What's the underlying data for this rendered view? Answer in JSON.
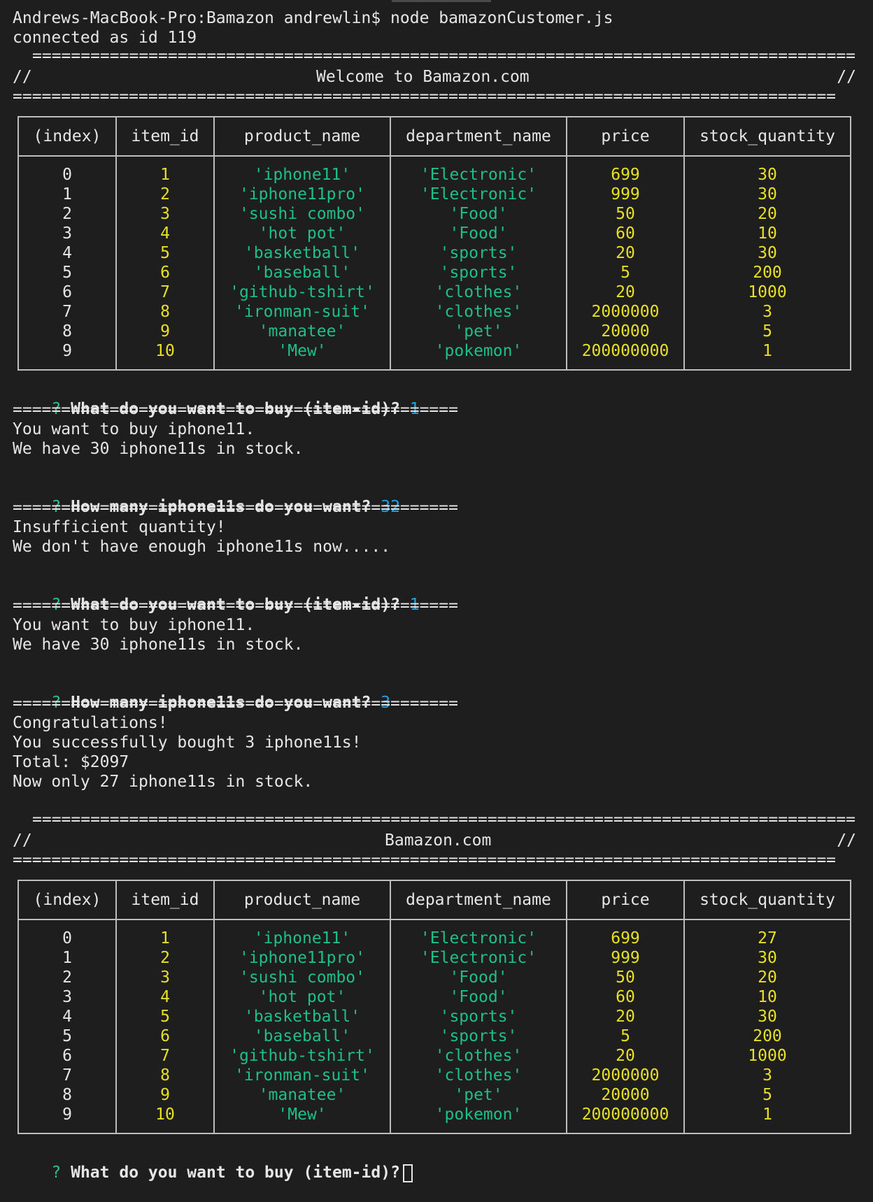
{
  "session": {
    "command_line": "Andrews-MacBook-Pro:Bamazon andrewlin$ node bamazonCustomer.js",
    "connected": "connected as id 119"
  },
  "banner1": {
    "left": "//",
    "title": "Welcome to Bamazon.com",
    "right": "//"
  },
  "banner2": {
    "left": "//",
    "title": "Bamazon.com",
    "right": "//"
  },
  "rule_long": "===========================================================================================",
  "rule_short": "==============================================",
  "table_headers": [
    "(index)",
    "item_id",
    "product_name",
    "department_name",
    "price",
    "stock_quantity"
  ],
  "table1": [
    [
      "0",
      "1",
      "'iphone11'",
      "'Electronic'",
      "699",
      "30"
    ],
    [
      "1",
      "2",
      "'iphone11pro'",
      "'Electronic'",
      "999",
      "30"
    ],
    [
      "2",
      "3",
      "'sushi combo'",
      "'Food'",
      "50",
      "20"
    ],
    [
      "3",
      "4",
      "'hot pot'",
      "'Food'",
      "60",
      "10"
    ],
    [
      "4",
      "5",
      "'basketball'",
      "'sports'",
      "20",
      "30"
    ],
    [
      "5",
      "6",
      "'baseball'",
      "'sports'",
      "5",
      "200"
    ],
    [
      "6",
      "7",
      "'github-tshirt'",
      "'clothes'",
      "20",
      "1000"
    ],
    [
      "7",
      "8",
      "'ironman-suit'",
      "'clothes'",
      "2000000",
      "3"
    ],
    [
      "8",
      "9",
      "'manatee'",
      "'pet'",
      "20000",
      "5"
    ],
    [
      "9",
      "10",
      "'Mew'",
      "'pokemon'",
      "200000000",
      "1"
    ]
  ],
  "table2": [
    [
      "0",
      "1",
      "'iphone11'",
      "'Electronic'",
      "699",
      "27"
    ],
    [
      "1",
      "2",
      "'iphone11pro'",
      "'Electronic'",
      "999",
      "30"
    ],
    [
      "2",
      "3",
      "'sushi combo'",
      "'Food'",
      "50",
      "20"
    ],
    [
      "3",
      "4",
      "'hot pot'",
      "'Food'",
      "60",
      "10"
    ],
    [
      "4",
      "5",
      "'basketball'",
      "'sports'",
      "20",
      "30"
    ],
    [
      "5",
      "6",
      "'baseball'",
      "'sports'",
      "5",
      "200"
    ],
    [
      "6",
      "7",
      "'github-tshirt'",
      "'clothes'",
      "20",
      "1000"
    ],
    [
      "7",
      "8",
      "'ironman-suit'",
      "'clothes'",
      "2000000",
      "3"
    ],
    [
      "8",
      "9",
      "'manatee'",
      "'pet'",
      "20000",
      "5"
    ],
    [
      "9",
      "10",
      "'Mew'",
      "'pokemon'",
      "200000000",
      "1"
    ]
  ],
  "prompts": {
    "q_mark": "?",
    "buy_question": "What do you want to buy (item-id)?",
    "qty_question": "How many iphone11s do you want?",
    "answer_1": "1",
    "answer_2": "32",
    "answer_3": "1",
    "answer_4": "3"
  },
  "messages": {
    "want_1": "You want to buy iphone11.",
    "stock_1": "We have 30 iphone11s in stock.",
    "insufficient": "Insufficient quantity!",
    "not_enough": "We don't have enough iphone11s now.....",
    "want_2": "You want to buy iphone11.",
    "stock_2": "We have 30 iphone11s in stock.",
    "congrats": "Congratulations!",
    "bought": "You successfully bought 3 iphone11s!",
    "total": "Total: $2097",
    "remaining": "Now only 27 iphone11s in stock."
  },
  "colors": {
    "background": "#1e1e1e",
    "text": "#e6e6e6",
    "number": "#e8e026",
    "string": "#1fbf88",
    "answer": "#1fa3e0",
    "prompt_mark": "#2bbf8a"
  }
}
